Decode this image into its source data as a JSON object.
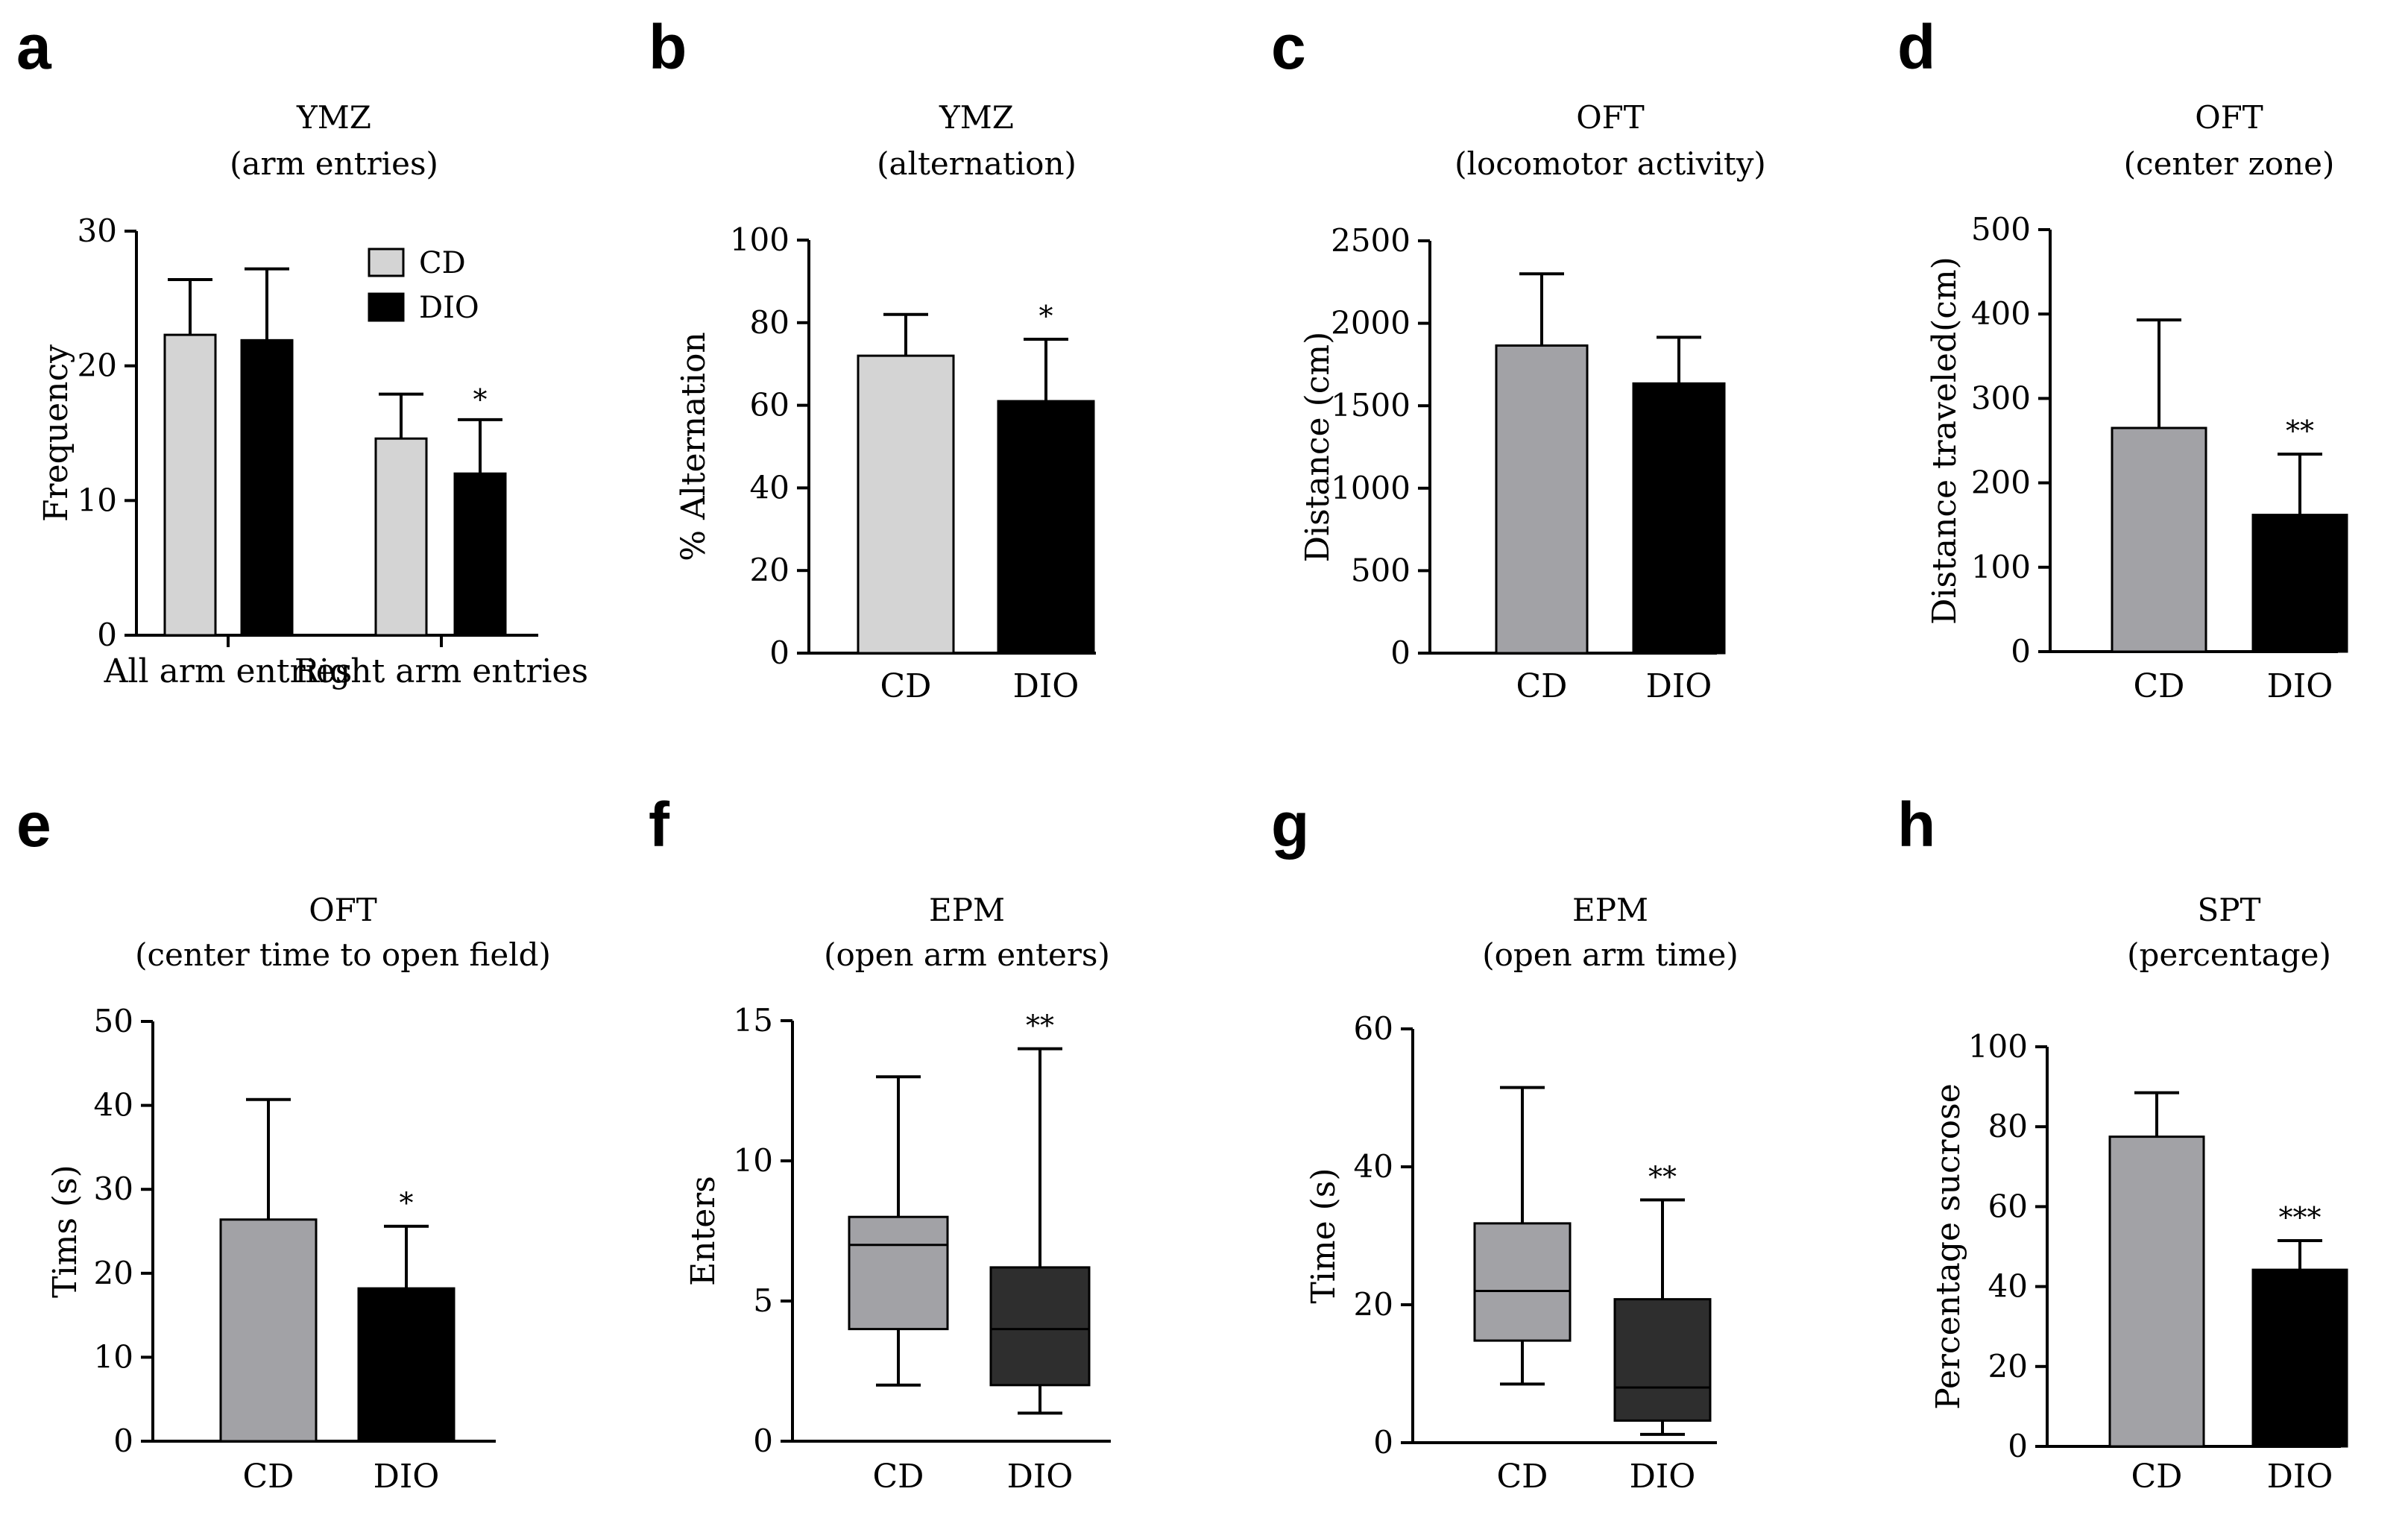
{
  "chart_data": [
    {
      "panel": "a",
      "type": "bar",
      "title": [
        "YMZ",
        "(arm entries)"
      ],
      "ylabel": "Frequency",
      "ylim": [
        0,
        30
      ],
      "yticks": [
        0,
        10,
        20,
        30
      ],
      "categories": [
        "All arm entries",
        "Right arm entries"
      ],
      "legend": [
        {
          "label": "CD",
          "color": "#d4d4d4"
        },
        {
          "label": "DIO",
          "color": "#000000"
        }
      ],
      "legend_position": "top-right",
      "series": [
        {
          "name": "CD",
          "color": "#d4d4d4",
          "values": [
            22.3,
            14.6
          ],
          "errors": [
            4.1,
            3.3
          ]
        },
        {
          "name": "DIO",
          "color": "#000000",
          "values": [
            21.9,
            12.0
          ],
          "errors": [
            5.3,
            4.0
          ]
        }
      ],
      "annotations": [
        {
          "category": 1,
          "series": 1,
          "text": "*"
        }
      ]
    },
    {
      "panel": "b",
      "type": "bar",
      "title": [
        "YMZ",
        "(alternation)"
      ],
      "ylabel": "% Alternation",
      "ylim": [
        0,
        100
      ],
      "yticks": [
        0,
        20,
        40,
        60,
        80,
        100
      ],
      "categories": [
        "CD",
        "DIO"
      ],
      "colors": [
        "#d4d4d4",
        "#000000"
      ],
      "values": [
        72,
        61
      ],
      "errors": [
        10,
        15
      ],
      "annotations": [
        {
          "category": 1,
          "text": "*"
        }
      ]
    },
    {
      "panel": "c",
      "type": "bar",
      "title": [
        "OFT",
        "(locomotor activity)"
      ],
      "ylabel": "Distance (cm)",
      "ylim": [
        0,
        2500
      ],
      "yticks": [
        0,
        500,
        1000,
        1500,
        2000,
        2500
      ],
      "categories": [
        "CD",
        "DIO"
      ],
      "colors": [
        "#a2a2a6",
        "#000000"
      ],
      "values": [
        1865,
        1635
      ],
      "errors": [
        435,
        280
      ],
      "annotations": []
    },
    {
      "panel": "d",
      "type": "bar",
      "title": [
        "OFT",
        "(center zone)"
      ],
      "ylabel": "Distance traveled(cm)",
      "ylim": [
        0,
        500
      ],
      "yticks": [
        0,
        100,
        200,
        300,
        400,
        500
      ],
      "categories": [
        "CD",
        "DIO"
      ],
      "colors": [
        "#a2a2a6",
        "#000000"
      ],
      "values": [
        265,
        162
      ],
      "errors": [
        128,
        72
      ],
      "annotations": [
        {
          "category": 1,
          "text": "**"
        }
      ]
    },
    {
      "panel": "e",
      "type": "bar",
      "title": [
        "OFT",
        "(center time to open field)"
      ],
      "ylabel": "Tims (s)",
      "ylim": [
        0,
        50
      ],
      "yticks": [
        0,
        10,
        20,
        30,
        40,
        50
      ],
      "categories": [
        "CD",
        "DIO"
      ],
      "colors": [
        "#a2a2a6",
        "#000000"
      ],
      "values": [
        26.4,
        18.2
      ],
      "errors": [
        14.3,
        7.4
      ],
      "annotations": [
        {
          "category": 1,
          "text": "*"
        }
      ]
    },
    {
      "panel": "f",
      "type": "box",
      "title": [
        "EPM",
        "(open arm enters)"
      ],
      "ylabel": "Enters",
      "ylim": [
        0,
        15
      ],
      "yticks": [
        0,
        5,
        10,
        15
      ],
      "categories": [
        "CD",
        "DIO"
      ],
      "colors": [
        "#a2a2a6",
        "#2e2e2e"
      ],
      "boxes": [
        {
          "min": 2,
          "q1": 4,
          "median": 7,
          "q3": 8,
          "max": 13
        },
        {
          "min": 1,
          "q1": 2,
          "median": 4,
          "q3": 6.2,
          "max": 14
        }
      ],
      "annotations": [
        {
          "category": 1,
          "text": "**"
        }
      ]
    },
    {
      "panel": "g",
      "type": "box",
      "title": [
        "EPM",
        "(open arm time)"
      ],
      "ylabel": "Time (s)",
      "ylim": [
        0,
        60
      ],
      "yticks": [
        0,
        20,
        40,
        60
      ],
      "categories": [
        "CD",
        "DIO"
      ],
      "colors": [
        "#a2a2a6",
        "#2e2e2e"
      ],
      "boxes": [
        {
          "min": 8.5,
          "q1": 14.8,
          "median": 22,
          "q3": 31.8,
          "max": 51.5
        },
        {
          "min": 1.2,
          "q1": 3.2,
          "median": 8,
          "q3": 20.8,
          "max": 35.2
        }
      ],
      "annotations": [
        {
          "category": 1,
          "text": "**"
        }
      ]
    },
    {
      "panel": "h",
      "type": "bar",
      "title": [
        "SPT",
        "(percentage)"
      ],
      "ylabel": "Percentage sucrose",
      "ylim": [
        0,
        100
      ],
      "yticks": [
        0,
        20,
        40,
        60,
        80,
        100
      ],
      "categories": [
        "CD",
        "DIO"
      ],
      "colors": [
        "#a2a2a6",
        "#000000"
      ],
      "values": [
        77.5,
        44.2
      ],
      "errors": [
        11,
        7.3
      ],
      "annotations": [
        {
          "category": 1,
          "text": "***"
        }
      ]
    }
  ]
}
